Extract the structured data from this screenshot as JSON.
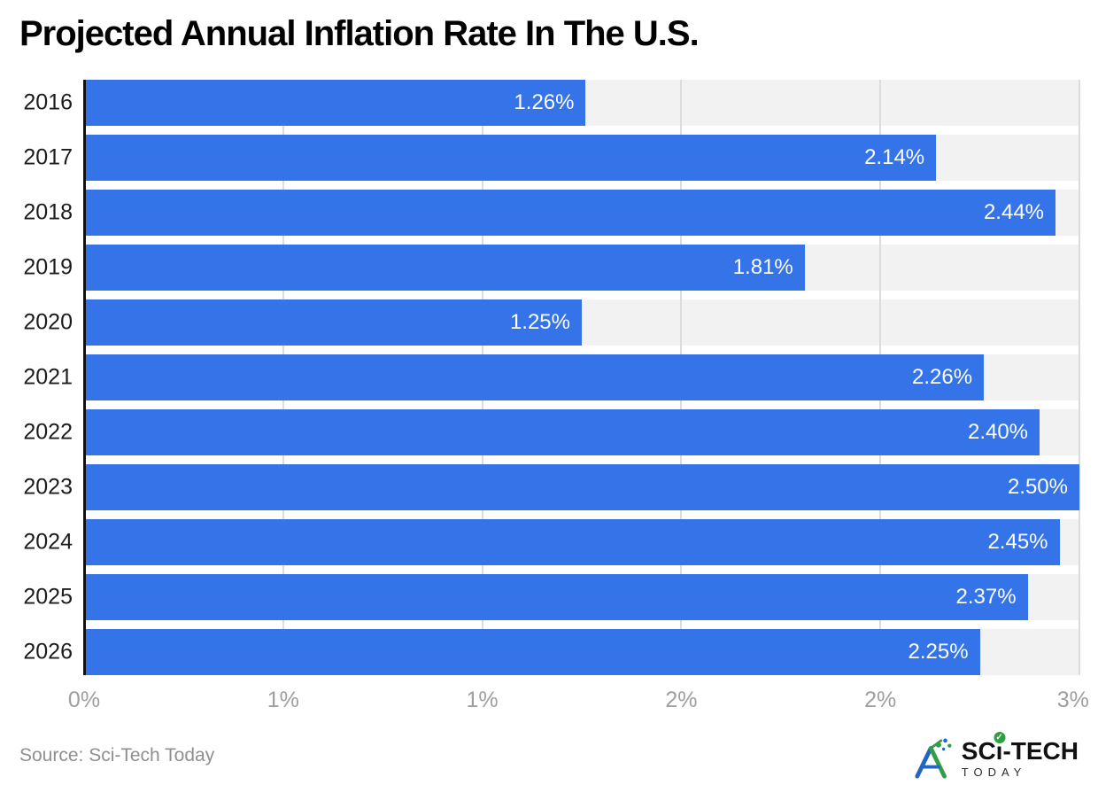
{
  "title": "Projected Annual Inflation Rate In The U.S.",
  "source": {
    "label": "Source: Sci-Tech Today"
  },
  "logo": {
    "prefix": "SC",
    "i_char": "ı",
    "check": "✓",
    "suffix": "-TECH",
    "sub": "TODAY"
  },
  "colors": {
    "bar": "#3473e8",
    "track": "#f2f2f2",
    "gridline": "#dcdcdc",
    "axis_line": "#111111",
    "tick_label": "#9e9e9e",
    "year_label": "#1c1c1c",
    "title": "#000000",
    "source": "#8f8f8f",
    "value_label": "#ffffff",
    "logo_green": "#2f9e44",
    "logo_blue": "#2166c4",
    "logo_text": "#111111"
  },
  "chart_data": {
    "type": "bar",
    "orientation": "horizontal",
    "title": "Projected Annual Inflation Rate In The U.S.",
    "categories": [
      "2016",
      "2017",
      "2018",
      "2019",
      "2020",
      "2021",
      "2022",
      "2023",
      "2024",
      "2025",
      "2026"
    ],
    "values": [
      1.26,
      2.14,
      2.44,
      1.81,
      1.25,
      2.26,
      2.4,
      2.5,
      2.45,
      2.37,
      2.25
    ],
    "value_labels": [
      "1.26%",
      "2.14%",
      "2.44%",
      "1.81%",
      "1.25%",
      "2.26%",
      "2.40%",
      "2.50%",
      "2.45%",
      "2.37%",
      "2.25%"
    ],
    "xlabel": "",
    "ylabel": "",
    "xlim": [
      0,
      2.5
    ],
    "x_ticks": [
      0,
      0.5,
      1.0,
      1.5,
      2.0,
      2.5
    ],
    "x_tick_labels": [
      "0%",
      "1%",
      "1%",
      "2%",
      "2%",
      "3%"
    ],
    "grid": true,
    "legend": false
  }
}
